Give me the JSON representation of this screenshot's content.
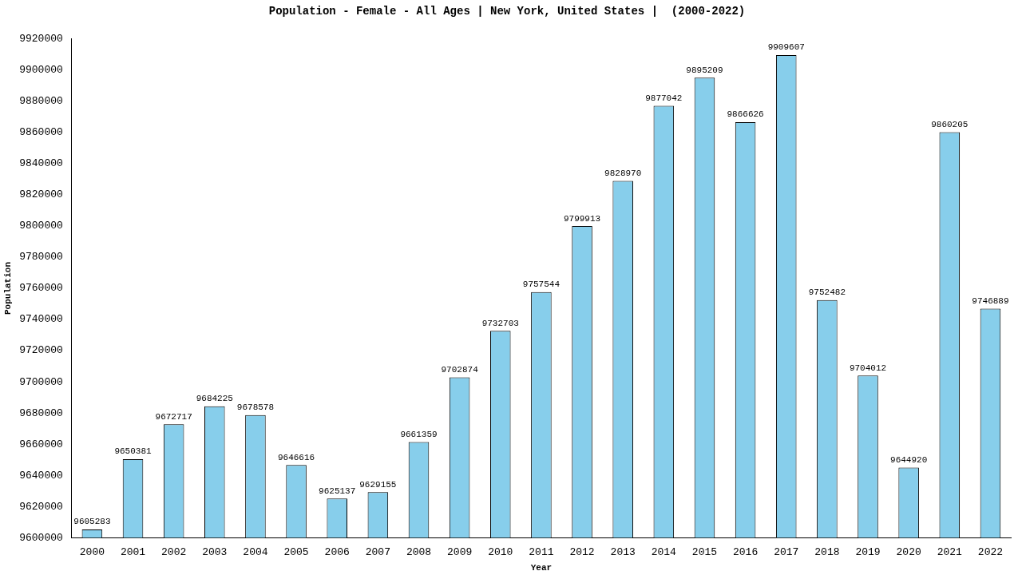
{
  "chart_data": {
    "type": "bar",
    "title": "Population - Female - All Ages | New York, United States |  (2000-2022)",
    "x_label": "Year",
    "y_label": "Population",
    "categories": [
      "2000",
      "2001",
      "2002",
      "2003",
      "2004",
      "2005",
      "2006",
      "2007",
      "2008",
      "2009",
      "2010",
      "2011",
      "2012",
      "2013",
      "2014",
      "2015",
      "2016",
      "2017",
      "2018",
      "2019",
      "2020",
      "2021",
      "2022"
    ],
    "values": [
      9605283,
      9650381,
      9672717,
      9684225,
      9678578,
      9646616,
      9625137,
      9629155,
      9661359,
      9702874,
      9732703,
      9757544,
      9799913,
      9828970,
      9877042,
      9895209,
      9866626,
      9909607,
      9752482,
      9704012,
      9644920,
      9860205,
      9746889
    ],
    "color": "#87ceeb",
    "ylim": [
      9600000,
      9920000
    ],
    "yticks": [
      9600000,
      9620000,
      9640000,
      9660000,
      9680000,
      9700000,
      9720000,
      9740000,
      9760000,
      9780000,
      9800000,
      9820000,
      9840000,
      9860000,
      9880000,
      9900000,
      9920000
    ],
    "grid": false,
    "data_labels": true
  }
}
